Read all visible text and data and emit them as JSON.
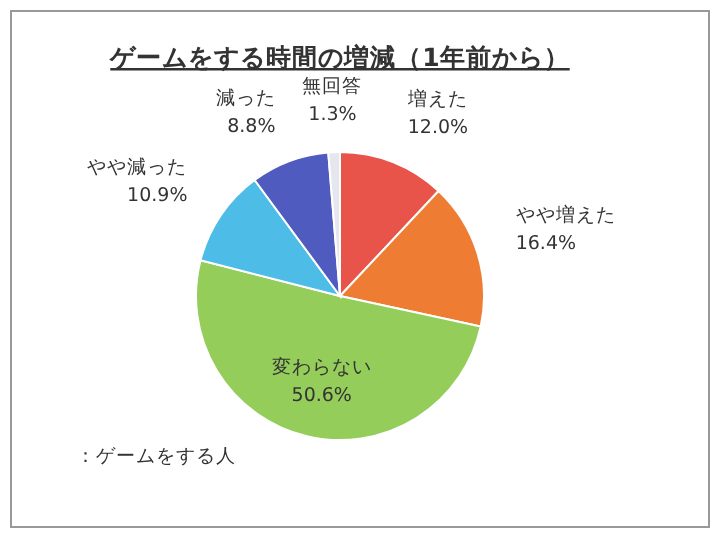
{
  "chart_data": {
    "type": "pie",
    "title": "ゲームをする時間の増減（1年前から）",
    "categories": [
      "増えた",
      "やや増えた",
      "変わらない",
      "やや減った",
      "減った",
      "無回答"
    ],
    "values": [
      12.0,
      16.4,
      50.6,
      10.9,
      8.8,
      1.3
    ],
    "value_labels": [
      "12.0%",
      "16.4%",
      "50.6%",
      "10.9%",
      "8.8%",
      "1.3%"
    ],
    "colors": [
      "#e8534a",
      "#ee7d33",
      "#95cd5b",
      "#4dbde8",
      "#4f5bbf",
      "#e6e6ee"
    ],
    "annotations": [
      "：ゲームをする人"
    ]
  }
}
